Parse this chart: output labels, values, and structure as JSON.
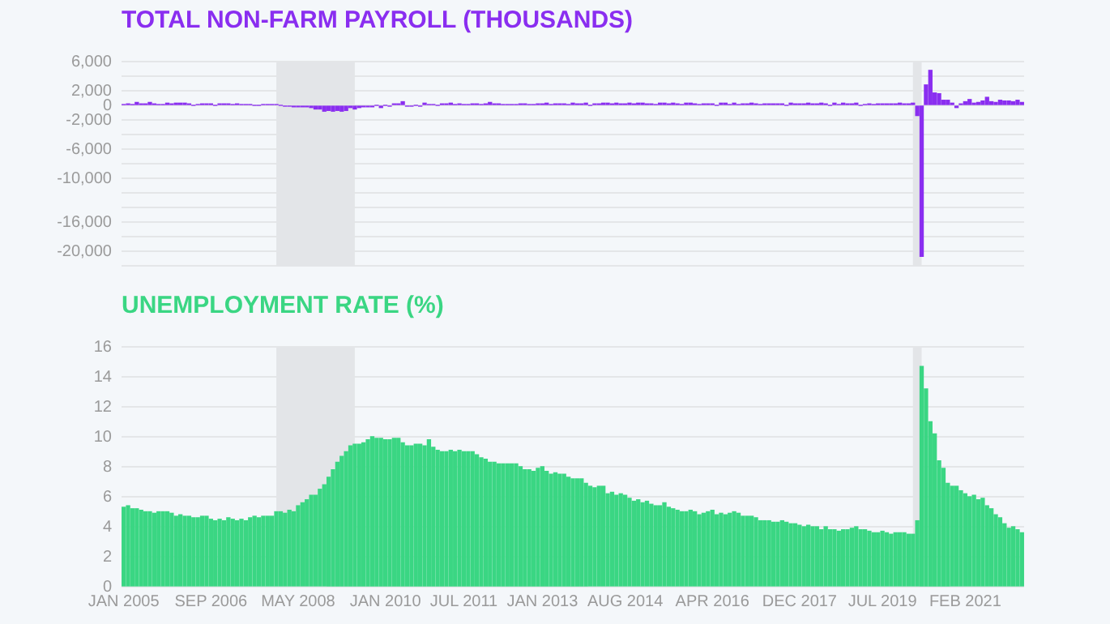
{
  "chart_data": [
    {
      "type": "bar",
      "title": "TOTAL NON-FARM PAYROLL (THOUSANDS)",
      "color": "#8a2ef0",
      "x": [
        "2005-01",
        "2005-02",
        "2005-03",
        "2005-04",
        "2005-05",
        "2005-06",
        "2005-07",
        "2005-08",
        "2005-09",
        "2005-10",
        "2005-11",
        "2005-12",
        "2006-01",
        "2006-02",
        "2006-03",
        "2006-04",
        "2006-05",
        "2006-06",
        "2006-07",
        "2006-08",
        "2006-09",
        "2006-10",
        "2006-11",
        "2006-12",
        "2007-01",
        "2007-02",
        "2007-03",
        "2007-04",
        "2007-05",
        "2007-06",
        "2007-07",
        "2007-08",
        "2007-09",
        "2007-10",
        "2007-11",
        "2007-12",
        "2008-01",
        "2008-02",
        "2008-03",
        "2008-04",
        "2008-05",
        "2008-06",
        "2008-07",
        "2008-08",
        "2008-09",
        "2008-10",
        "2008-11",
        "2008-12",
        "2009-01",
        "2009-02",
        "2009-03",
        "2009-04",
        "2009-05",
        "2009-06",
        "2009-07",
        "2009-08",
        "2009-09",
        "2009-10",
        "2009-11",
        "2009-12",
        "2010-01",
        "2010-02",
        "2010-03",
        "2010-04",
        "2010-05",
        "2010-06",
        "2010-07",
        "2010-08",
        "2010-09",
        "2010-10",
        "2010-11",
        "2010-12",
        "2011-01",
        "2011-02",
        "2011-03",
        "2011-04",
        "2011-05",
        "2011-06",
        "2011-07",
        "2011-08",
        "2011-09",
        "2011-10",
        "2011-11",
        "2011-12",
        "2012-01",
        "2012-02",
        "2012-03",
        "2012-04",
        "2012-05",
        "2012-06",
        "2012-07",
        "2012-08",
        "2012-09",
        "2012-10",
        "2012-11",
        "2012-12",
        "2013-01",
        "2013-02",
        "2013-03",
        "2013-04",
        "2013-05",
        "2013-06",
        "2013-07",
        "2013-08",
        "2013-09",
        "2013-10",
        "2013-11",
        "2013-12",
        "2014-01",
        "2014-02",
        "2014-03",
        "2014-04",
        "2014-05",
        "2014-06",
        "2014-07",
        "2014-08",
        "2014-09",
        "2014-10",
        "2014-11",
        "2014-12",
        "2015-01",
        "2015-02",
        "2015-03",
        "2015-04",
        "2015-05",
        "2015-06",
        "2015-07",
        "2015-08",
        "2015-09",
        "2015-10",
        "2015-11",
        "2015-12",
        "2016-01",
        "2016-02",
        "2016-03",
        "2016-04",
        "2016-05",
        "2016-06",
        "2016-07",
        "2016-08",
        "2016-09",
        "2016-10",
        "2016-11",
        "2016-12",
        "2017-01",
        "2017-02",
        "2017-03",
        "2017-04",
        "2017-05",
        "2017-06",
        "2017-07",
        "2017-08",
        "2017-09",
        "2017-10",
        "2017-11",
        "2017-12",
        "2018-01",
        "2018-02",
        "2018-03",
        "2018-04",
        "2018-05",
        "2018-06",
        "2018-07",
        "2018-08",
        "2018-09",
        "2018-10",
        "2018-11",
        "2018-12",
        "2019-01",
        "2019-02",
        "2019-03",
        "2019-04",
        "2019-05",
        "2019-06",
        "2019-07",
        "2019-08",
        "2019-09",
        "2019-10",
        "2019-11",
        "2019-12",
        "2020-01",
        "2020-02",
        "2020-03",
        "2020-04",
        "2020-05",
        "2020-06",
        "2020-07",
        "2020-08",
        "2020-09",
        "2020-10",
        "2020-11",
        "2020-12",
        "2021-01",
        "2021-02",
        "2021-03",
        "2021-04",
        "2021-05",
        "2021-06",
        "2021-07",
        "2021-08",
        "2021-09",
        "2021-10",
        "2021-11",
        "2021-12",
        "2022-01",
        "2022-02",
        "2022-03"
      ],
      "values": [
        100,
        200,
        100,
        400,
        200,
        200,
        400,
        200,
        100,
        100,
        300,
        200,
        300,
        300,
        300,
        200,
        0,
        100,
        200,
        200,
        200,
        0,
        200,
        200,
        200,
        100,
        200,
        100,
        100,
        100,
        0,
        0,
        100,
        100,
        100,
        100,
        0,
        -100,
        -100,
        -200,
        -200,
        -200,
        -200,
        -300,
        -500,
        -500,
        -800,
        -700,
        -800,
        -700,
        -800,
        -700,
        -300,
        -500,
        -300,
        -200,
        -200,
        -200,
        0,
        -300,
        0,
        -100,
        200,
        200,
        500,
        -100,
        -100,
        0,
        -100,
        300,
        100,
        100,
        0,
        200,
        200,
        300,
        100,
        200,
        100,
        100,
        200,
        200,
        100,
        200,
        400,
        200,
        200,
        100,
        100,
        100,
        100,
        200,
        200,
        100,
        100,
        200,
        200,
        300,
        100,
        200,
        200,
        200,
        100,
        300,
        200,
        200,
        300,
        0,
        200,
        200,
        300,
        300,
        200,
        300,
        200,
        200,
        300,
        200,
        300,
        300,
        200,
        200,
        100,
        300,
        300,
        200,
        300,
        200,
        100,
        300,
        300,
        200,
        100,
        200,
        200,
        200,
        0,
        300,
        300,
        100,
        300,
        100,
        200,
        200,
        300,
        200,
        100,
        200,
        200,
        200,
        200,
        200,
        0,
        300,
        200,
        200,
        200,
        300,
        200,
        200,
        300,
        200,
        0,
        300,
        100,
        300,
        200,
        200,
        300,
        0,
        100,
        200,
        100,
        200,
        200,
        200,
        200,
        200,
        300,
        200,
        200,
        300,
        -1400,
        -20700,
        2800,
        4800,
        1700,
        1600,
        700,
        700,
        300,
        -300,
        200,
        500,
        800,
        300,
        400,
        600,
        1100,
        500,
        400,
        700,
        600,
        600,
        500,
        700,
        400
      ],
      "xlim": [
        "2004-12-16",
        "2022-03-16"
      ],
      "ylim": [
        -22000,
        6000
      ],
      "yticks": [
        {
          "value": 6000,
          "label": "6,000"
        },
        {
          "value": 4000,
          "label": null
        },
        {
          "value": 2000,
          "label": "2,000"
        },
        0,
        {
          "value": -2000,
          "label": "-2,000"
        },
        {
          "value": -4000,
          "label": null
        },
        {
          "value": -6000,
          "label": "-6,000"
        },
        {
          "value": -8000,
          "label": null
        },
        {
          "value": -10000,
          "label": "-10,000"
        },
        {
          "value": -12000,
          "label": null
        },
        {
          "value": -14000,
          "label": null
        },
        {
          "value": -16000,
          "label": "-16,000"
        },
        {
          "value": -18000,
          "label": null
        },
        {
          "value": -20000,
          "label": "-20,000"
        },
        {
          "value": -22000,
          "label": null
        }
      ],
      "bands": [
        {
          "axis": "x",
          "from": "2007-12",
          "to": "2009-06",
          "color": "#e3e5e8"
        },
        {
          "axis": "x",
          "from": "2020-02",
          "to": "2020-04",
          "color": "#e3e5e8"
        }
      ],
      "grid": "y",
      "tick_labels": "y"
    },
    {
      "type": "bar",
      "title": "UNEMPLOYMENT RATE (%)",
      "color": "#3ad683",
      "x": [
        "2005-01",
        "2005-02",
        "2005-03",
        "2005-04",
        "2005-05",
        "2005-06",
        "2005-07",
        "2005-08",
        "2005-09",
        "2005-10",
        "2005-11",
        "2005-12",
        "2006-01",
        "2006-02",
        "2006-03",
        "2006-04",
        "2006-05",
        "2006-06",
        "2006-07",
        "2006-08",
        "2006-09",
        "2006-10",
        "2006-11",
        "2006-12",
        "2007-01",
        "2007-02",
        "2007-03",
        "2007-04",
        "2007-05",
        "2007-06",
        "2007-07",
        "2007-08",
        "2007-09",
        "2007-10",
        "2007-11",
        "2007-12",
        "2008-01",
        "2008-02",
        "2008-03",
        "2008-04",
        "2008-05",
        "2008-06",
        "2008-07",
        "2008-08",
        "2008-09",
        "2008-10",
        "2008-11",
        "2008-12",
        "2009-01",
        "2009-02",
        "2009-03",
        "2009-04",
        "2009-05",
        "2009-06",
        "2009-07",
        "2009-08",
        "2009-09",
        "2009-10",
        "2009-11",
        "2009-12",
        "2010-01",
        "2010-02",
        "2010-03",
        "2010-04",
        "2010-05",
        "2010-06",
        "2010-07",
        "2010-08",
        "2010-09",
        "2010-10",
        "2010-11",
        "2010-12",
        "2011-01",
        "2011-02",
        "2011-03",
        "2011-04",
        "2011-05",
        "2011-06",
        "2011-07",
        "2011-08",
        "2011-09",
        "2011-10",
        "2011-11",
        "2011-12",
        "2012-01",
        "2012-02",
        "2012-03",
        "2012-04",
        "2012-05",
        "2012-06",
        "2012-07",
        "2012-08",
        "2012-09",
        "2012-10",
        "2012-11",
        "2012-12",
        "2013-01",
        "2013-02",
        "2013-03",
        "2013-04",
        "2013-05",
        "2013-06",
        "2013-07",
        "2013-08",
        "2013-09",
        "2013-10",
        "2013-11",
        "2013-12",
        "2014-01",
        "2014-02",
        "2014-03",
        "2014-04",
        "2014-05",
        "2014-06",
        "2014-07",
        "2014-08",
        "2014-09",
        "2014-10",
        "2014-11",
        "2014-12",
        "2015-01",
        "2015-02",
        "2015-03",
        "2015-04",
        "2015-05",
        "2015-06",
        "2015-07",
        "2015-08",
        "2015-09",
        "2015-10",
        "2015-11",
        "2015-12",
        "2016-01",
        "2016-02",
        "2016-03",
        "2016-04",
        "2016-05",
        "2016-06",
        "2016-07",
        "2016-08",
        "2016-09",
        "2016-10",
        "2016-11",
        "2016-12",
        "2017-01",
        "2017-02",
        "2017-03",
        "2017-04",
        "2017-05",
        "2017-06",
        "2017-07",
        "2017-08",
        "2017-09",
        "2017-10",
        "2017-11",
        "2017-12",
        "2018-01",
        "2018-02",
        "2018-03",
        "2018-04",
        "2018-05",
        "2018-06",
        "2018-07",
        "2018-08",
        "2018-09",
        "2018-10",
        "2018-11",
        "2018-12",
        "2019-01",
        "2019-02",
        "2019-03",
        "2019-04",
        "2019-05",
        "2019-06",
        "2019-07",
        "2019-08",
        "2019-09",
        "2019-10",
        "2019-11",
        "2019-12",
        "2020-01",
        "2020-02",
        "2020-03",
        "2020-04",
        "2020-05",
        "2020-06",
        "2020-07",
        "2020-08",
        "2020-09",
        "2020-10",
        "2020-11",
        "2020-12",
        "2021-01",
        "2021-02",
        "2021-03",
        "2021-04",
        "2021-05",
        "2021-06",
        "2021-07",
        "2021-08",
        "2021-09",
        "2021-10",
        "2021-11",
        "2021-12",
        "2022-01",
        "2022-02",
        "2022-03"
      ],
      "values": [
        5.3,
        5.4,
        5.2,
        5.2,
        5.1,
        5.0,
        5.0,
        4.9,
        5.0,
        5.0,
        5.0,
        4.9,
        4.7,
        4.8,
        4.7,
        4.7,
        4.6,
        4.6,
        4.7,
        4.7,
        4.5,
        4.4,
        4.5,
        4.4,
        4.6,
        4.5,
        4.4,
        4.5,
        4.4,
        4.6,
        4.7,
        4.6,
        4.7,
        4.7,
        4.7,
        5.0,
        5.0,
        4.9,
        5.1,
        5.0,
        5.4,
        5.6,
        5.8,
        6.1,
        6.1,
        6.5,
        6.8,
        7.3,
        7.8,
        8.3,
        8.7,
        9.0,
        9.4,
        9.5,
        9.5,
        9.6,
        9.8,
        10.0,
        9.9,
        9.9,
        9.8,
        9.8,
        9.9,
        9.9,
        9.6,
        9.4,
        9.4,
        9.5,
        9.5,
        9.4,
        9.8,
        9.3,
        9.1,
        9.0,
        9.0,
        9.1,
        9.0,
        9.1,
        9.0,
        9.0,
        9.0,
        8.8,
        8.6,
        8.5,
        8.3,
        8.3,
        8.2,
        8.2,
        8.2,
        8.2,
        8.2,
        8.0,
        7.8,
        7.8,
        7.7,
        7.9,
        8.0,
        7.7,
        7.5,
        7.6,
        7.5,
        7.5,
        7.3,
        7.2,
        7.2,
        7.2,
        6.9,
        6.7,
        6.6,
        6.7,
        6.7,
        6.2,
        6.3,
        6.1,
        6.2,
        6.1,
        5.9,
        5.7,
        5.8,
        5.6,
        5.7,
        5.5,
        5.4,
        5.4,
        5.6,
        5.3,
        5.2,
        5.1,
        5.0,
        5.0,
        5.1,
        5.0,
        4.8,
        4.9,
        5.0,
        5.1,
        4.8,
        4.9,
        4.8,
        4.9,
        5.0,
        4.9,
        4.7,
        4.7,
        4.7,
        4.6,
        4.4,
        4.4,
        4.4,
        4.3,
        4.3,
        4.4,
        4.3,
        4.2,
        4.2,
        4.1,
        4.0,
        4.1,
        4.0,
        4.0,
        3.8,
        4.0,
        3.8,
        3.8,
        3.7,
        3.8,
        3.8,
        3.9,
        4.0,
        3.8,
        3.8,
        3.7,
        3.6,
        3.6,
        3.7,
        3.6,
        3.5,
        3.6,
        3.6,
        3.6,
        3.5,
        3.5,
        4.4,
        14.7,
        13.2,
        11.0,
        10.2,
        8.4,
        7.9,
        6.9,
        6.7,
        6.7,
        6.4,
        6.2,
        6.0,
        6.1,
        5.8,
        5.9,
        5.4,
        5.2,
        4.8,
        4.6,
        4.2,
        3.9,
        4.0,
        3.8,
        3.6
      ],
      "xlim": [
        "2004-12-16",
        "2022-03-16"
      ],
      "xticks": [
        {
          "value": "2005-01",
          "label": "JAN 2005"
        },
        {
          "value": "2006-09",
          "label": "SEP 2006"
        },
        {
          "value": "2008-05",
          "label": "MAY 2008"
        },
        {
          "value": "2010-01",
          "label": "JAN 2010"
        },
        {
          "value": "2011-07",
          "label": "JUL 2011"
        },
        {
          "value": "2013-01",
          "label": "JAN 2013"
        },
        {
          "value": "2014-08",
          "label": "AUG 2014"
        },
        {
          "value": "2016-04",
          "label": "APR 2016"
        },
        {
          "value": "2017-12",
          "label": "DEC 2017"
        },
        {
          "value": "2019-07",
          "label": "JUL 2019"
        },
        {
          "value": "2021-02",
          "label": "FEB 2021"
        }
      ],
      "ylim": [
        0,
        16
      ],
      "yticks": [
        0,
        2,
        4,
        6,
        8,
        10,
        12,
        14,
        16
      ],
      "bands": [
        {
          "axis": "x",
          "from": "2007-12",
          "to": "2009-06",
          "color": "#e3e5e8"
        },
        {
          "axis": "x",
          "from": "2020-02",
          "to": "2020-04",
          "color": "#e3e5e8"
        }
      ],
      "grid": "y"
    }
  ]
}
